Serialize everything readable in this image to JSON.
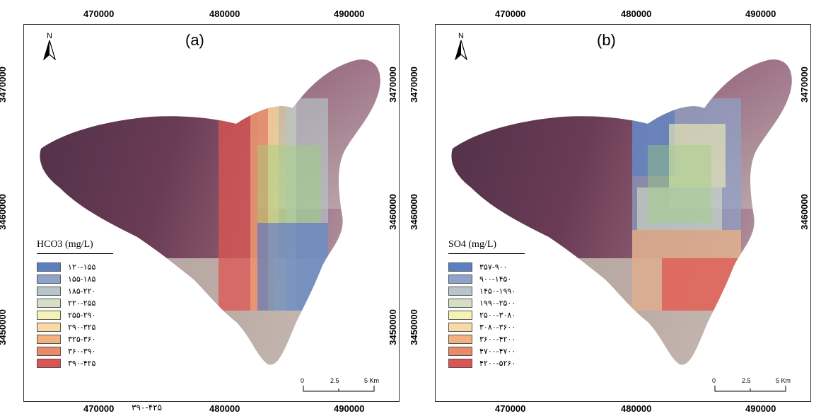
{
  "panels": [
    {
      "label": "(a)",
      "north": "N",
      "ticks_x": [
        "470000",
        "480000",
        "490000"
      ],
      "ticks_y": [
        "3470000",
        "3460000",
        "3450000"
      ],
      "legend": {
        "title": "HCO3 (mg/L)",
        "classes": [
          {
            "label": "۱۲۰-۱۵۵",
            "color": "#5b7fbf"
          },
          {
            "label": "۱۵۵-۱۸۵",
            "color": "#8ea3c9"
          },
          {
            "label": "۱۸۵-۲۲۰",
            "color": "#b7c4c9"
          },
          {
            "label": "۲۲۰-۲۵۵",
            "color": "#d6dfc6"
          },
          {
            "label": "۲۵۵-۲۹۰",
            "color": "#f4f2b4"
          },
          {
            "label": "۲۹۰-۳۲۵",
            "color": "#f9d9a4"
          },
          {
            "label": "۳۲۵-۳۶۰",
            "color": "#f3b17e"
          },
          {
            "label": "۳۶۰-۳۹۰",
            "color": "#ea8a66"
          },
          {
            "label": "۳۹۰-۴۲۵",
            "color": "#dd5552"
          }
        ]
      },
      "scale": {
        "labels": [
          "0",
          "2.5",
          "5 Km"
        ]
      },
      "bottom_extra": "۳۹۰-۴۲۵"
    },
    {
      "label": "(b)",
      "north": "N",
      "ticks_x": [
        "470000",
        "480000",
        "490000"
      ],
      "ticks_y": [
        "3470000",
        "3460000",
        "3450000"
      ],
      "legend": {
        "title": "SO4  (mg/L)",
        "classes": [
          {
            "label": "۳۵۷-۹۰۰",
            "color": "#5b7fbf"
          },
          {
            "label": "۹۰۰-۱۴۵۰",
            "color": "#8ea3c9"
          },
          {
            "label": "۱۴۵۰-۱۹۹۰",
            "color": "#b7c4c9"
          },
          {
            "label": "۱۹۹۰-۲۵۰۰",
            "color": "#d6dfc6"
          },
          {
            "label": "۲۵۰۰-۳۰۸۰",
            "color": "#f4f2b4"
          },
          {
            "label": "۳۰۸۰-۳۶۰۰",
            "color": "#f9d9a4"
          },
          {
            "label": "۳۶۰۰-۴۲۰۰",
            "color": "#f3b17e"
          },
          {
            "label": "۴۷۰۰-۴۷۰۰",
            "color": "#ea8a66"
          },
          {
            "label": "۴۲۰۰-۵۲۶۰",
            "color": "#dd5552"
          }
        ]
      },
      "scale": {
        "labels": [
          "0",
          "2.5",
          "5 Km"
        ]
      }
    }
  ]
}
